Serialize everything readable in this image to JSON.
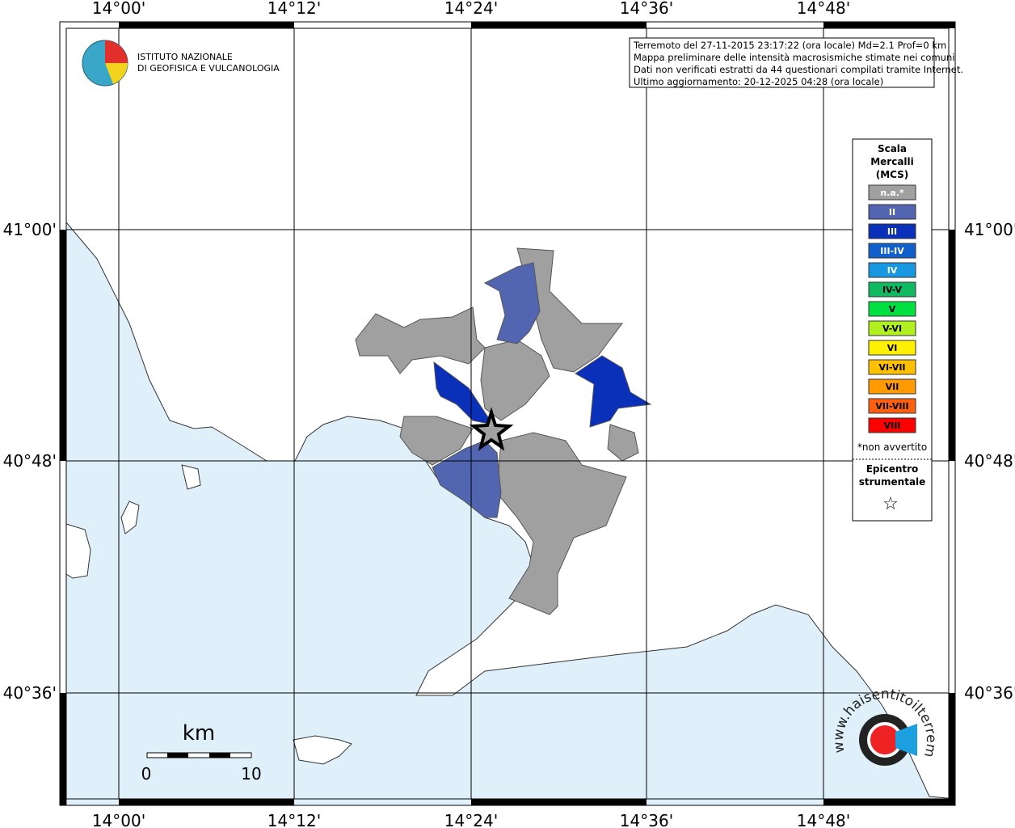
{
  "map": {
    "lon_labels": [
      "14°00'",
      "14°12'",
      "14°24'",
      "14°36'",
      "14°48'"
    ],
    "lat_labels": [
      "41°00'",
      "40°48'",
      "40°36'"
    ],
    "logo": {
      "line1": "ISTITUTO NAZIONALE",
      "line2": "DI GEOFISICA E VULCANOLOGIA"
    },
    "info": [
      "Terremoto del 27-11-2015 23:17:22 (ora locale) Md=2.1 Prof=0 km",
      "Mappa preliminare delle intensità macrosismiche stimate nei comuni",
      "Dati non verificati estratti da 44 questionari compilati tramite Internet.",
      "Ultimo aggiornamento: 20-12-2025 04:28 (ora locale)"
    ],
    "legend": {
      "title": [
        "Scala",
        "Mercalli",
        "(MCS)"
      ],
      "items": [
        {
          "label": "n.a.*",
          "color": "#a0a0a0"
        },
        {
          "label": "II",
          "color": "#5165b0"
        },
        {
          "label": "III",
          "color": "#0a2fb8"
        },
        {
          "label": "III-IV",
          "color": "#1060cc"
        },
        {
          "label": "IV",
          "color": "#1898e0"
        },
        {
          "label": "IV-V",
          "color": "#10b860"
        },
        {
          "label": "V",
          "color": "#00e040"
        },
        {
          "label": "V-VI",
          "color": "#b0f020"
        },
        {
          "label": "VI",
          "color": "#fff000"
        },
        {
          "label": "VI-VII",
          "color": "#ffc000"
        },
        {
          "label": "VII",
          "color": "#ff9a00"
        },
        {
          "label": "VII-VIII",
          "color": "#ff6010"
        },
        {
          "label": "VIII",
          "color": "#ff0000"
        }
      ],
      "note": "*non avvertito",
      "epicenter": [
        "Epicentro",
        "strumentale"
      ],
      "star": "☆"
    },
    "scale": {
      "unit": "km",
      "start": "0",
      "end": "10"
    },
    "site": "www.haisentitoilterremoto.it"
  }
}
